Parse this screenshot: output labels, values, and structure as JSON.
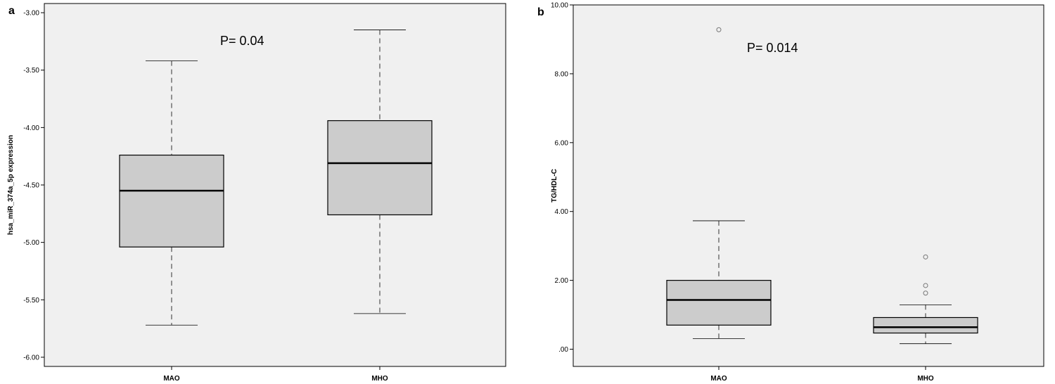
{
  "chart_data": [
    {
      "panel": "a",
      "type": "box",
      "title": "",
      "xlabel": "",
      "ylabel": "hsa_miR_374a_5p expression",
      "categories": [
        "MAO",
        "MHO"
      ],
      "ylim": [
        -6.08,
        -2.92
      ],
      "yticks": [
        -3.0,
        -3.5,
        -4.0,
        -4.5,
        -5.0,
        -5.5,
        -6.0
      ],
      "ytick_labels": [
        "-3.00",
        "-3.50",
        "-4.00",
        "-4.50",
        "-5.00",
        "-5.50",
        "-6.00"
      ],
      "boxes": [
        {
          "category": "MAO",
          "min": -5.72,
          "q1": -5.04,
          "median": -4.55,
          "q3": -4.24,
          "max": -3.42,
          "outliers": []
        },
        {
          "category": "MHO",
          "min": -5.62,
          "q1": -4.76,
          "median": -4.31,
          "q3": -3.94,
          "max": -3.15,
          "outliers": []
        }
      ],
      "annotation": "P= 0.04",
      "grid": false,
      "background": "#f0f0f0",
      "box_fill": "#cccccc"
    },
    {
      "panel": "b",
      "type": "box",
      "title": "",
      "xlabel": "",
      "ylabel": "TG/HDL-C",
      "categories": [
        "MAO",
        "MHO"
      ],
      "ylim": [
        -0.5,
        10.0
      ],
      "yticks": [
        0,
        2,
        4,
        6,
        8,
        10
      ],
      "ytick_labels": [
        ".00",
        "2.00",
        "4.00",
        "6.00",
        "8.00",
        "10.00"
      ],
      "boxes": [
        {
          "category": "MAO",
          "min": 0.31,
          "q1": 0.7,
          "median": 1.43,
          "q3": 2.0,
          "max": 3.73,
          "outliers": [
            9.28
          ]
        },
        {
          "category": "MHO",
          "min": 0.16,
          "q1": 0.47,
          "median": 0.64,
          "q3": 0.92,
          "max": 1.29,
          "outliers": [
            2.68,
            1.85,
            1.63
          ]
        }
      ],
      "annotation": "P= 0.014",
      "grid": false,
      "background": "#f0f0f0",
      "box_fill": "#cccccc"
    }
  ]
}
